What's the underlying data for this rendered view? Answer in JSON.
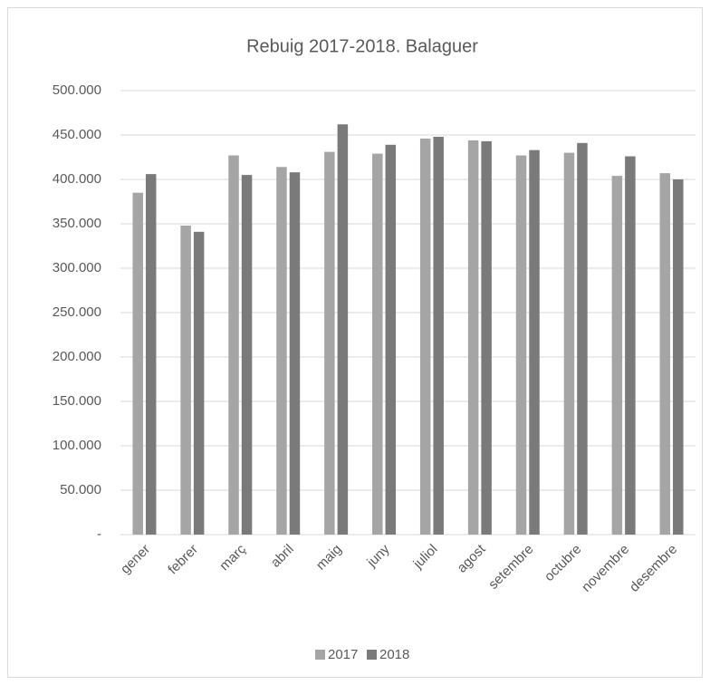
{
  "chart_data": {
    "type": "bar",
    "title": "Rebuig 2017-2018. Balaguer",
    "categories": [
      "gener",
      "febrer",
      "març",
      "abril",
      "maig",
      "juny",
      "juliol",
      "agost",
      "setembre",
      "octubre",
      "novembre",
      "desembre"
    ],
    "series": [
      {
        "name": "2017",
        "color": "#a5a5a5",
        "values": [
          385000,
          348000,
          427000,
          414000,
          431000,
          429000,
          446000,
          444000,
          427000,
          430000,
          404000,
          407000
        ]
      },
      {
        "name": "2018",
        "color": "#7a7a7a",
        "values": [
          406000,
          341000,
          405000,
          408000,
          462000,
          439000,
          448000,
          443000,
          433000,
          441000,
          426000,
          400000
        ]
      }
    ],
    "ylim": [
      0,
      500000
    ],
    "yticks": [
      {
        "value": 0,
        "label": "-"
      },
      {
        "value": 50000,
        "label": "50.000"
      },
      {
        "value": 100000,
        "label": "100.000"
      },
      {
        "value": 150000,
        "label": "150.000"
      },
      {
        "value": 200000,
        "label": "200.000"
      },
      {
        "value": 250000,
        "label": "250.000"
      },
      {
        "value": 300000,
        "label": "300.000"
      },
      {
        "value": 350000,
        "label": "350.000"
      },
      {
        "value": 400000,
        "label": "400.000"
      },
      {
        "value": 450000,
        "label": "450.000"
      },
      {
        "value": 500000,
        "label": "500.000"
      }
    ],
    "grid": true,
    "legend": "bottom"
  }
}
